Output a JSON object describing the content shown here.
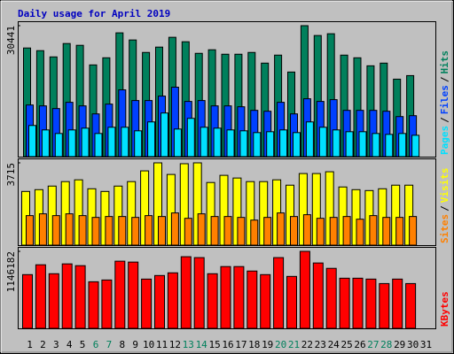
{
  "title": "Daily usage for April 2019",
  "chart_data": [
    {
      "type": "bar",
      "ylim": [
        0,
        30441
      ],
      "yticks": [
        30441
      ],
      "legend_separator": "/",
      "series": [
        {
          "name": "Hits",
          "color": "#00805c",
          "values": [
            25254,
            24633,
            23184,
            26289,
            25875,
            21321,
            22977,
            28773,
            27117,
            24219,
            25461,
            27738,
            26703,
            24012,
            24840,
            23805,
            23805,
            24219,
            21735,
            23598,
            19665,
            30441,
            28152,
            28566,
            23598,
            22977,
            21114,
            21735,
            18009,
            18837,
            null
          ]
        },
        {
          "name": "Files",
          "color": "#0040ff",
          "values": [
            12006,
            11799,
            11178,
            12627,
            11799,
            9936,
            12213,
            15525,
            13041,
            13041,
            14076,
            16146,
            12834,
            13041,
            11799,
            11799,
            11592,
            10764,
            10557,
            12627,
            9936,
            13455,
            12834,
            13248,
            10764,
            10764,
            10764,
            10557,
            9315,
            9522,
            null
          ]
        },
        {
          "name": "Pages",
          "color": "#00e0ff",
          "values": [
            7245,
            6210,
            5382,
            6210,
            6624,
            5382,
            6831,
            6831,
            6003,
            8073,
            10143,
            6417,
            8901,
            6831,
            6624,
            6210,
            6003,
            5589,
            5796,
            6210,
            5589,
            8073,
            6831,
            6210,
            5796,
            5796,
            5382,
            5175,
            5382,
            4968,
            null
          ]
        }
      ]
    },
    {
      "type": "bar",
      "ylim": [
        0,
        3715
      ],
      "yticks": [
        3715
      ],
      "legend_separator": "/",
      "series": [
        {
          "name": "Visits",
          "color": "#ffff00",
          "values": [
            2424,
            2505,
            2666,
            2868,
            2949,
            2545,
            2424,
            2666,
            2868,
            3353,
            3715,
            3191,
            3676,
            3715,
            2828,
            3151,
            3030,
            2868,
            2868,
            2949,
            2707,
            3232,
            3232,
            3313,
            2626,
            2505,
            2464,
            2545,
            2707,
            2707,
            null
          ]
        },
        {
          "name": "Sites",
          "color": "#ff8000",
          "values": [
            1333,
            1414,
            1333,
            1414,
            1333,
            1252,
            1293,
            1293,
            1252,
            1333,
            1293,
            1454,
            1212,
            1414,
            1293,
            1293,
            1252,
            1131,
            1252,
            1454,
            1293,
            1374,
            1212,
            1252,
            1293,
            1172,
            1333,
            1252,
            1252,
            1293,
            null
          ]
        }
      ]
    },
    {
      "type": "bar",
      "ylim": [
        0,
        1146182
      ],
      "yticks": [
        1146182
      ],
      "categories": [
        "1",
        "2",
        "3",
        "4",
        "5",
        "6",
        "7",
        "8",
        "9",
        "10",
        "11",
        "12",
        "13",
        "14",
        "15",
        "16",
        "17",
        "18",
        "19",
        "20",
        "21",
        "22",
        "23",
        "24",
        "25",
        "26",
        "27",
        "28",
        "29",
        "30",
        "31"
      ],
      "category_colors": [
        "#000",
        "#000",
        "#000",
        "#000",
        "#000",
        "#00805c",
        "#00805c",
        "#000",
        "#000",
        "#000",
        "#000",
        "#000",
        "#00805c",
        "#00805c",
        "#000",
        "#000",
        "#000",
        "#000",
        "#000",
        "#00805c",
        "#00805c",
        "#000",
        "#000",
        "#000",
        "#000",
        "#000",
        "#00805c",
        "#00805c",
        "#000",
        "#000",
        "#000"
      ],
      "series": [
        {
          "name": "KBytes",
          "color": "#ff0000",
          "values": [
            799680,
            946288,
            813008,
            959616,
            932960,
            693056,
            719712,
            999600,
            986272,
            733040,
            786352,
            826336,
            1066240,
            1052912,
            813008,
            919632,
            919632,
            852992,
            799680,
            1052912,
            773024,
            1146182,
            972944,
            892976,
            746368,
            746368,
            733040,
            666400,
            733040,
            666400,
            null
          ]
        }
      ]
    }
  ]
}
